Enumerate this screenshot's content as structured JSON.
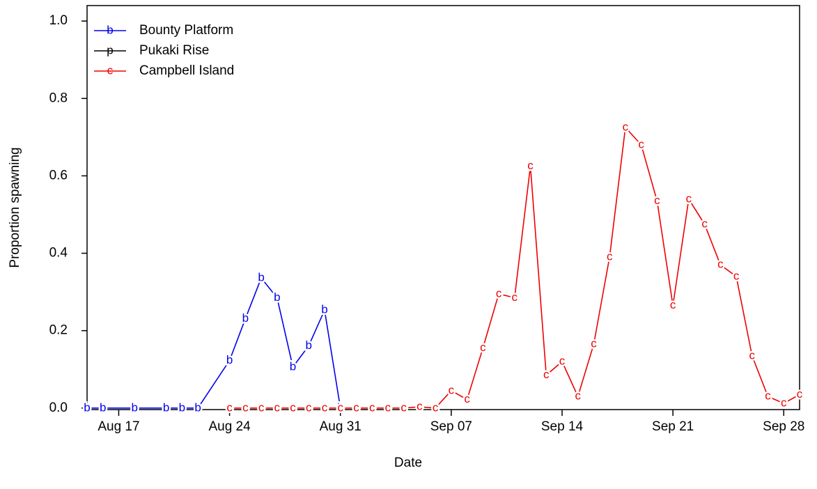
{
  "chart_data": {
    "type": "line",
    "x_label": "Date",
    "y_label": "Proportion spawning",
    "xlim": [
      "Aug 15",
      "Sep 29"
    ],
    "xticks": [
      "Aug 17",
      "Aug 24",
      "Aug 31",
      "Sep 07",
      "Sep 14",
      "Sep 21",
      "Sep 28"
    ],
    "ylim": [
      -0.004,
      1.04
    ],
    "yticks": [
      {
        "value": 0,
        "label": "0.0"
      },
      0.2,
      0.4,
      0.6,
      0.8,
      {
        "value": 1,
        "label": "1.0"
      }
    ],
    "legend": "top-left",
    "series": [
      {
        "name": "Bounty Platform",
        "color": "#0000ee",
        "marker": "b",
        "x": [
          "Aug 15",
          "Aug 16",
          "Aug 18",
          "Aug 20",
          "Aug 21",
          "Aug 22",
          "Aug 24",
          "Aug 25",
          "Aug 26",
          "Aug 27",
          "Aug 28",
          "Aug 29",
          "Aug 30",
          "Aug 31"
        ],
        "values": [
          0,
          0,
          0,
          0,
          0,
          0,
          0.123,
          0.231,
          0.336,
          0.285,
          0.106,
          0.161,
          0.253,
          0
        ]
      },
      {
        "name": "Pukaki Rise",
        "color": "#000000",
        "marker": "p",
        "x": [],
        "values": []
      },
      {
        "name": "Campbell Island",
        "color": "#ee0000",
        "marker": "c",
        "x": [
          "Aug 24",
          "Aug 25",
          "Aug 26",
          "Aug 27",
          "Aug 28",
          "Aug 29",
          "Aug 30",
          "Aug 31",
          "Sep 1",
          "Sep 2",
          "Sep 3",
          "Sep 4",
          "Sep 5",
          "Sep 6",
          "Sep 7",
          "Sep 8",
          "Sep 9",
          "Sep 10",
          "Sep 11",
          "Sep 12",
          "Sep 13",
          "Sep 14",
          "Sep 15",
          "Sep 16",
          "Sep 17",
          "Sep 18",
          "Sep 19",
          "Sep 20",
          "Sep 21",
          "Sep 22",
          "Sep 23",
          "Sep 24",
          "Sep 25",
          "Sep 26",
          "Sep 27",
          "Sep 28",
          "Sep 29"
        ],
        "values": [
          0,
          0,
          0,
          0,
          0,
          0,
          0,
          0,
          0,
          0,
          0,
          0,
          0.003,
          0,
          0.045,
          0.022,
          0.155,
          0.295,
          0.285,
          0.625,
          0.085,
          0.12,
          0.03,
          0.165,
          0.39,
          0.725,
          0.68,
          0.535,
          0.265,
          0.54,
          0.475,
          0.37,
          0.34,
          0.135,
          0.03,
          0.012,
          0.035
        ]
      }
    ]
  }
}
